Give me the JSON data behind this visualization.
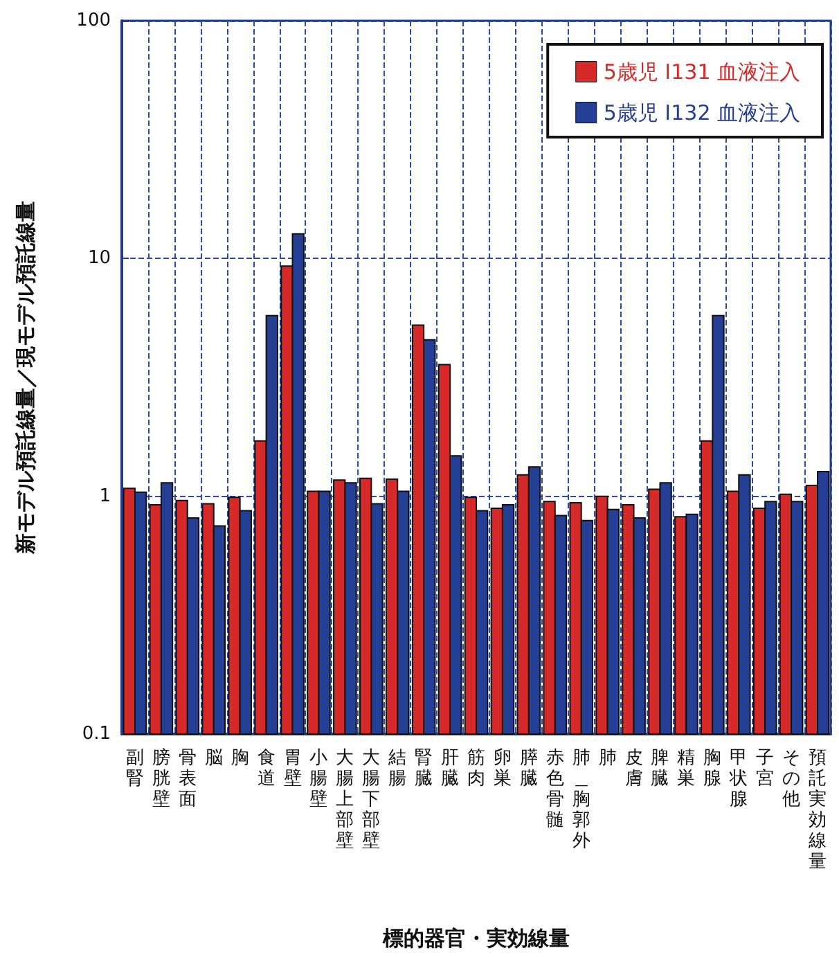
{
  "chart_data": {
    "type": "bar",
    "xlabel": "標的器官・実効線量",
    "ylabel": "新モデル預託線量／現モデル預託線量",
    "categories": [
      "副腎",
      "膀胱壁",
      "骨表面",
      "脳",
      "胸",
      "食道",
      "胃壁",
      "小腸壁",
      "大腸上部壁",
      "大腸下部壁",
      "結腸",
      "腎臓",
      "肝臓",
      "筋肉",
      "卵巣",
      "膵臓",
      "赤色骨髄",
      "肺＿胸郭外",
      "肺",
      "皮膚",
      "脾臓",
      "精巣",
      "胸腺",
      "甲状腺",
      "子宮",
      "その他",
      "預託実効線量"
    ],
    "series": [
      {
        "name": "5歳児 I131 血液注入",
        "color": "#d42a2a",
        "values": [
          1.08,
          0.92,
          0.96,
          0.93,
          0.99,
          1.71,
          9.3,
          1.05,
          1.17,
          1.19,
          1.18,
          5.25,
          3.58,
          0.99,
          0.89,
          1.23,
          0.95,
          0.94,
          1.0,
          0.92,
          1.07,
          0.82,
          1.71,
          1.05,
          0.89,
          1.02,
          1.11
        ]
      },
      {
        "name": "5歳児 I132 血液注入",
        "color": "#253f95",
        "values": [
          1.04,
          1.14,
          0.81,
          0.75,
          0.87,
          5.75,
          12.7,
          1.05,
          1.14,
          0.93,
          1.05,
          4.55,
          1.48,
          0.87,
          0.92,
          1.33,
          0.83,
          0.79,
          0.88,
          0.81,
          1.14,
          0.84,
          5.75,
          1.23,
          0.95,
          0.95,
          1.27
        ]
      }
    ],
    "log": true,
    "ylim": [
      0.1,
      100
    ],
    "yticks": [
      0.1,
      1,
      10,
      100
    ],
    "grid": true,
    "legend": "top right"
  }
}
